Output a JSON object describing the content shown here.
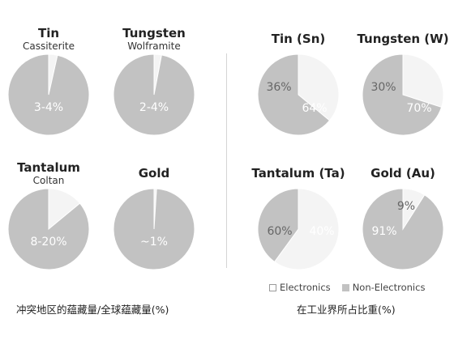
{
  "colors": {
    "electronics": "#f4f4f4",
    "non_electronics": "#c2c2c2",
    "slice_stroke": "#ffffff",
    "title_text": "#222222",
    "label_on_dark": "#ffffff",
    "label_on_light": "#666666"
  },
  "legend": {
    "electronics": "Electronics",
    "non_electronics": "Non-Electronics"
  },
  "captions": {
    "left": "冲突地区的蕴藏量/全球蕴藏量(%)",
    "right": "在工业界所占比重(%)"
  },
  "chart_data": [
    {
      "type": "pie",
      "title": "Tin",
      "subtitle": "Cassiterite",
      "series": [
        {
          "name": "Conflict-region share",
          "values": [
            3.5,
            96.5
          ]
        }
      ],
      "labels": [
        "",
        "3-4%"
      ]
    },
    {
      "type": "pie",
      "title": "Tungsten",
      "subtitle": "Wolframite",
      "series": [
        {
          "name": "Conflict-region share",
          "values": [
            3,
            97
          ]
        }
      ],
      "labels": [
        "",
        "2-4%"
      ]
    },
    {
      "type": "pie",
      "title": "Tantalum",
      "subtitle": "Coltan",
      "series": [
        {
          "name": "Conflict-region share",
          "values": [
            14,
            86
          ]
        }
      ],
      "labels": [
        "",
        "8-20%"
      ]
    },
    {
      "type": "pie",
      "title": "Gold",
      "subtitle": "",
      "series": [
        {
          "name": "Conflict-region share",
          "values": [
            1,
            99
          ]
        }
      ],
      "labels": [
        "",
        "~1%"
      ]
    },
    {
      "type": "pie",
      "title": "Tin (Sn)",
      "subtitle": "",
      "series": [
        {
          "name": "Industry share",
          "values": [
            36,
            64
          ]
        }
      ],
      "labels": [
        "36%",
        "64%"
      ]
    },
    {
      "type": "pie",
      "title": "Tungsten (W)",
      "subtitle": "",
      "series": [
        {
          "name": "Industry share",
          "values": [
            30,
            70
          ]
        }
      ],
      "labels": [
        "30%",
        "70%"
      ]
    },
    {
      "type": "pie",
      "title": "Tantalum (Ta)",
      "subtitle": "",
      "series": [
        {
          "name": "Industry share",
          "values": [
            60,
            40
          ]
        }
      ],
      "labels": [
        "60%",
        "40%"
      ]
    },
    {
      "type": "pie",
      "title": "Gold (Au)",
      "subtitle": "",
      "series": [
        {
          "name": "Industry share",
          "values": [
            9,
            91
          ]
        }
      ],
      "labels": [
        "9%",
        "91%"
      ]
    }
  ]
}
